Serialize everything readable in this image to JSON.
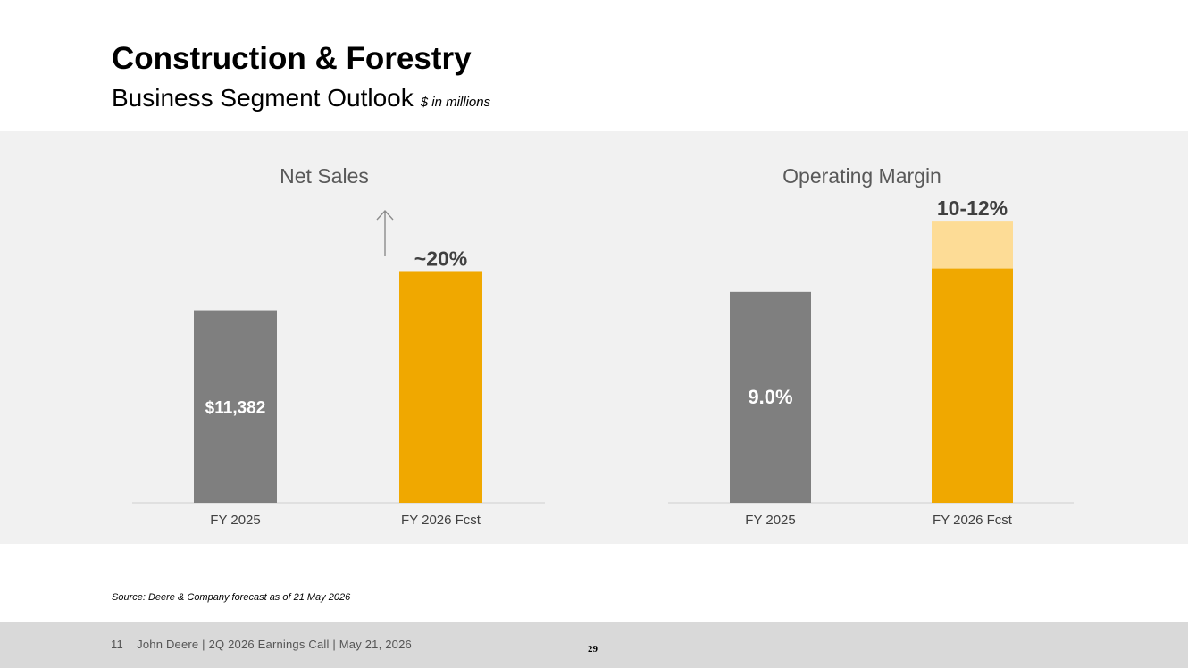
{
  "slide": {
    "title": "Construction & Forestry",
    "subtitle": "Business Segment Outlook",
    "unit_note": "$ in millions",
    "source": "Source: Deere & Company forecast as of 21 May 2026"
  },
  "footer": {
    "slide_number": "11",
    "text": "John Deere | 2Q 2026 Earnings Call | May 21, 2026",
    "page_number": "29"
  },
  "colors": {
    "actual": "#7f7f7f",
    "forecast": "#f0a800",
    "forecast_range": "#fddc96",
    "panel": "#f1f1f1",
    "arrow": "#8c8c8c"
  },
  "chart_data": [
    {
      "type": "bar",
      "title": "Net Sales",
      "categories": [
        "FY 2025",
        "FY 2026 Fcst"
      ],
      "values": [
        11382,
        13658
      ],
      "data_labels": [
        "$11,382",
        "~20%"
      ],
      "ylim": [
        0,
        14000
      ],
      "grid": false,
      "annotation": "up-arrow-icon"
    },
    {
      "type": "bar",
      "title": "Operating Margin",
      "categories": [
        "FY 2025",
        "FY 2026 Fcst"
      ],
      "values": [
        9.0,
        10
      ],
      "range": [
        null,
        [
          10,
          12
        ]
      ],
      "data_labels": [
        "9.0%",
        "10-12%"
      ],
      "ylim": [
        0,
        12.5
      ],
      "grid": false
    }
  ]
}
